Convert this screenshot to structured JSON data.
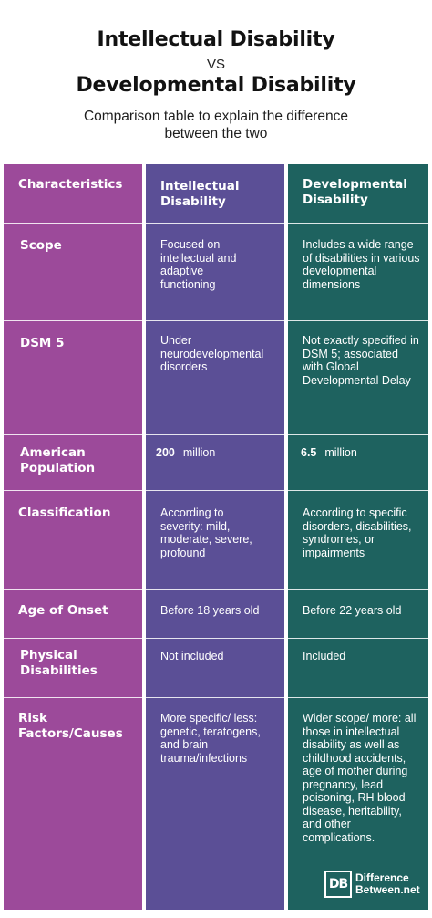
{
  "header": {
    "title_line1": "Intellectual Disability",
    "vs": "VS",
    "title_line2": "Developmental Disability",
    "subtitle_line1": "Comparison table to explain the difference",
    "subtitle_line2": "between the two"
  },
  "table": {
    "columns": [
      "Characteristics",
      "Intellectual Disability",
      "Developmental Disability"
    ],
    "rows": [
      {
        "label": "Scope",
        "intellectual": "Focused on intellectual and adaptive functioning",
        "developmental": "Includes a wide range of disabilities in various developmental dimensions"
      },
      {
        "label": "DSM 5",
        "intellectual": "Under neurodevelopmental disorders",
        "developmental": "Not exactly specified in DSM 5; associated with Global Developmental Delay"
      },
      {
        "label": "American Population",
        "intellectual_num": "200",
        "intellectual_unit": "million",
        "developmental_num": "6.5",
        "developmental_unit": "million"
      },
      {
        "label": "Classification",
        "intellectual": "According to severity: mild, moderate, severe, profound",
        "developmental": "According to specific disorders, disabilities, syndromes, or impairments"
      },
      {
        "label": "Age of Onset",
        "intellectual": "Before 18 years old",
        "developmental": "Before 22 years old"
      },
      {
        "label": "Physical Disabilities",
        "intellectual": "Not included",
        "developmental": "Included"
      },
      {
        "label": "Risk Factors/Causes",
        "intellectual": "More specific/ less: genetic, teratogens, and brain trauma/infections",
        "developmental": "Wider scope/ more: all those in intellectual disability as well as childhood accidents, age of mother during pregnancy, lead poisoning, RH blood disease, heritability, and other complications."
      }
    ]
  },
  "logo": {
    "mark": "DB",
    "line1": "Difference",
    "line2": "Between.net"
  },
  "colors": {
    "col1": "#9c4a9a",
    "col2": "#5b4f96",
    "col3": "#1e625f"
  }
}
